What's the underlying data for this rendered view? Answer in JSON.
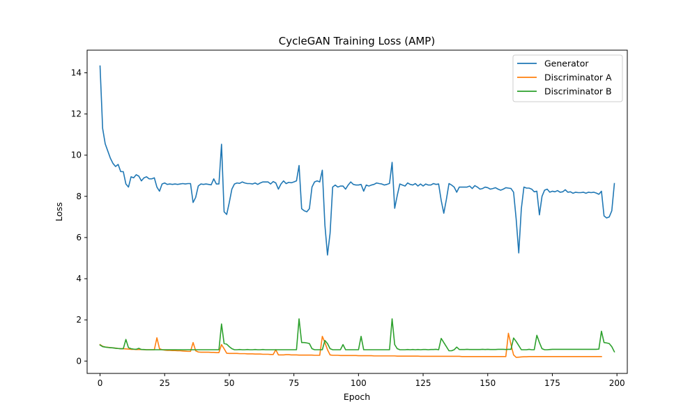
{
  "chart_data": {
    "type": "line",
    "title": "CycleGAN Training Loss (AMP)",
    "xlabel": "Epoch",
    "ylabel": "Loss",
    "xlim": [
      -5,
      204
    ],
    "ylim": [
      -0.6,
      15.1
    ],
    "xticks": [
      0,
      25,
      50,
      75,
      100,
      125,
      150,
      175,
      200
    ],
    "yticks": [
      0,
      2,
      4,
      6,
      8,
      10,
      12,
      14
    ],
    "grid": false,
    "legend_position": "upper right",
    "series": [
      {
        "name": "Generator",
        "color": "#1f77b4",
        "values": [
          14.33,
          11.3,
          10.55,
          10.2,
          9.85,
          9.6,
          9.45,
          9.55,
          9.2,
          9.2,
          8.6,
          8.45,
          8.95,
          8.9,
          9.05,
          8.98,
          8.75,
          8.9,
          8.95,
          8.85,
          8.85,
          8.9,
          8.45,
          8.25,
          8.6,
          8.65,
          8.58,
          8.6,
          8.58,
          8.6,
          8.58,
          8.6,
          8.62,
          8.6,
          8.62,
          8.62,
          7.7,
          7.95,
          8.5,
          8.6,
          8.58,
          8.6,
          8.58,
          8.56,
          8.85,
          8.6,
          8.6,
          10.53,
          7.25,
          7.12,
          7.7,
          8.35,
          8.6,
          8.65,
          8.63,
          8.7,
          8.65,
          8.62,
          8.62,
          8.6,
          8.65,
          8.58,
          8.65,
          8.7,
          8.7,
          8.7,
          8.6,
          8.72,
          8.65,
          8.35,
          8.6,
          8.75,
          8.62,
          8.68,
          8.66,
          8.7,
          8.75,
          9.5,
          7.4,
          7.3,
          7.25,
          7.4,
          8.45,
          8.7,
          8.75,
          8.7,
          9.27,
          6.6,
          5.15,
          6.2,
          8.45,
          8.55,
          8.45,
          8.5,
          8.5,
          8.35,
          8.55,
          8.7,
          8.58,
          8.55,
          8.55,
          8.58,
          8.25,
          8.55,
          8.5,
          8.55,
          8.58,
          8.65,
          8.62,
          8.6,
          8.55,
          8.58,
          8.63,
          9.65,
          7.42,
          8.05,
          8.6,
          8.55,
          8.5,
          8.65,
          8.58,
          8.55,
          8.62,
          8.5,
          8.6,
          8.5,
          8.6,
          8.55,
          8.55,
          8.62,
          8.58,
          8.6,
          7.8,
          7.18,
          7.85,
          8.62,
          8.55,
          8.45,
          8.2,
          8.45,
          8.45,
          8.45,
          8.45,
          8.5,
          8.38,
          8.52,
          8.45,
          8.35,
          8.38,
          8.45,
          8.42,
          8.35,
          8.38,
          8.42,
          8.35,
          8.3,
          8.35,
          8.42,
          8.4,
          8.38,
          8.2,
          6.9,
          5.25,
          7.4,
          8.45,
          8.4,
          8.4,
          8.35,
          8.22,
          8.25,
          7.1,
          8.0,
          8.3,
          8.35,
          8.2,
          8.25,
          8.22,
          8.28,
          8.2,
          8.22,
          8.32,
          8.2,
          8.22,
          8.15,
          8.2,
          8.18,
          8.18,
          8.2,
          8.15,
          8.2,
          8.18,
          8.2,
          8.16,
          8.1,
          8.25,
          7.05,
          6.95,
          7.0,
          7.3,
          8.62
        ]
      },
      {
        "name": "Discriminator A",
        "color": "#ff7f0e",
        "values": [
          0.8,
          0.72,
          0.68,
          0.67,
          0.65,
          0.64,
          0.63,
          0.61,
          0.6,
          0.6,
          0.59,
          0.58,
          0.57,
          0.57,
          0.56,
          0.56,
          0.56,
          0.55,
          0.55,
          0.55,
          0.55,
          0.55,
          1.13,
          0.6,
          0.55,
          0.53,
          0.52,
          0.52,
          0.51,
          0.51,
          0.5,
          0.5,
          0.49,
          0.48,
          0.47,
          0.47,
          0.9,
          0.5,
          0.44,
          0.43,
          0.43,
          0.43,
          0.43,
          0.42,
          0.42,
          0.41,
          0.41,
          0.8,
          0.6,
          0.38,
          0.37,
          0.37,
          0.37,
          0.37,
          0.36,
          0.36,
          0.36,
          0.35,
          0.35,
          0.35,
          0.34,
          0.34,
          0.34,
          0.33,
          0.33,
          0.33,
          0.32,
          0.32,
          0.55,
          0.3,
          0.3,
          0.3,
          0.31,
          0.31,
          0.3,
          0.3,
          0.3,
          0.29,
          0.29,
          0.29,
          0.29,
          0.29,
          0.29,
          0.28,
          0.28,
          0.28,
          1.2,
          0.9,
          0.55,
          0.3,
          0.28,
          0.28,
          0.28,
          0.27,
          0.27,
          0.27,
          0.27,
          0.27,
          0.27,
          0.27,
          0.26,
          0.26,
          0.26,
          0.26,
          0.26,
          0.26,
          0.25,
          0.25,
          0.25,
          0.25,
          0.25,
          0.25,
          0.25,
          0.25,
          0.25,
          0.24,
          0.24,
          0.24,
          0.24,
          0.24,
          0.24,
          0.24,
          0.24,
          0.24,
          0.23,
          0.23,
          0.23,
          0.23,
          0.23,
          0.23,
          0.23,
          0.23,
          0.23,
          0.23,
          0.23,
          0.23,
          0.23,
          0.23,
          0.23,
          0.23,
          0.22,
          0.22,
          0.22,
          0.22,
          0.22,
          0.22,
          0.22,
          0.22,
          0.22,
          0.22,
          0.22,
          0.22,
          0.22,
          0.22,
          0.22,
          0.22,
          0.22,
          0.22,
          1.35,
          0.8,
          0.3,
          0.18,
          0.19,
          0.2,
          0.21,
          0.21,
          0.22,
          0.22,
          0.22,
          0.22,
          0.22,
          0.22,
          0.22,
          0.22,
          0.22,
          0.22,
          0.22,
          0.22,
          0.22,
          0.22,
          0.22,
          0.22,
          0.22,
          0.22,
          0.22,
          0.22,
          0.22,
          0.22,
          0.22,
          0.22,
          0.22,
          0.22,
          0.22,
          0.22,
          0.22
        ]
      },
      {
        "name": "Discriminator B",
        "color": "#2ca02c",
        "values": [
          0.78,
          0.7,
          0.68,
          0.66,
          0.65,
          0.64,
          0.62,
          0.61,
          0.6,
          0.6,
          1.05,
          0.65,
          0.6,
          0.58,
          0.57,
          0.62,
          0.56,
          0.56,
          0.55,
          0.55,
          0.55,
          0.55,
          0.55,
          0.55,
          0.55,
          0.55,
          0.55,
          0.55,
          0.55,
          0.55,
          0.55,
          0.55,
          0.55,
          0.55,
          0.55,
          0.55,
          0.55,
          0.55,
          0.55,
          0.55,
          0.55,
          0.55,
          0.55,
          0.55,
          0.55,
          0.55,
          0.55,
          1.8,
          0.85,
          0.82,
          0.7,
          0.6,
          0.55,
          0.55,
          0.56,
          0.55,
          0.55,
          0.56,
          0.55,
          0.55,
          0.56,
          0.55,
          0.55,
          0.56,
          0.55,
          0.55,
          0.55,
          0.55,
          0.55,
          0.55,
          0.55,
          0.55,
          0.55,
          0.55,
          0.55,
          0.55,
          0.55,
          2.05,
          0.9,
          0.9,
          0.88,
          0.85,
          0.6,
          0.55,
          0.55,
          0.55,
          0.55,
          1.0,
          0.85,
          0.6,
          0.55,
          0.55,
          0.55,
          0.55,
          0.8,
          0.55,
          0.55,
          0.55,
          0.55,
          0.55,
          0.55,
          1.2,
          0.55,
          0.55,
          0.55,
          0.55,
          0.55,
          0.55,
          0.55,
          0.55,
          0.55,
          0.55,
          0.55,
          2.05,
          0.8,
          0.6,
          0.55,
          0.55,
          0.55,
          0.56,
          0.55,
          0.56,
          0.55,
          0.56,
          0.55,
          0.56,
          0.56,
          0.55,
          0.56,
          0.56,
          0.57,
          0.55,
          1.1,
          0.9,
          0.7,
          0.5,
          0.5,
          0.55,
          0.68,
          0.56,
          0.56,
          0.56,
          0.57,
          0.56,
          0.56,
          0.56,
          0.56,
          0.56,
          0.57,
          0.56,
          0.57,
          0.56,
          0.56,
          0.56,
          0.57,
          0.57,
          0.57,
          0.56,
          0.57,
          0.57,
          1.12,
          0.95,
          0.75,
          0.55,
          0.55,
          0.55,
          0.57,
          0.55,
          0.55,
          1.25,
          0.9,
          0.6,
          0.55,
          0.55,
          0.56,
          0.57,
          0.57,
          0.57,
          0.57,
          0.57,
          0.57,
          0.57,
          0.57,
          0.57,
          0.57,
          0.57,
          0.57,
          0.57,
          0.57,
          0.57,
          0.57,
          0.57,
          0.57,
          0.58,
          1.45,
          0.9,
          0.88,
          0.85,
          0.7,
          0.45
        ]
      }
    ]
  }
}
